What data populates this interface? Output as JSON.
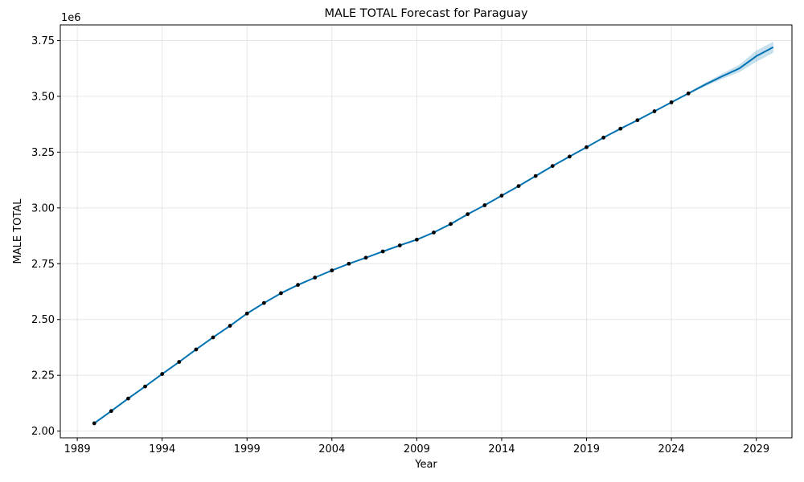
{
  "chart_data": {
    "type": "line",
    "title": "MALE TOTAL Forecast for Paraguay",
    "xlabel": "Year",
    "ylabel": "MALE TOTAL",
    "y_offset_label": "1e6",
    "y_scale_factor": 1000000,
    "xlim": [
      1988.0,
      2031.1
    ],
    "ylim": [
      1.97,
      3.82
    ],
    "x_ticks": [
      1989,
      1994,
      1999,
      2004,
      2009,
      2014,
      2019,
      2024,
      2029
    ],
    "y_ticks": [
      2.0,
      2.25,
      2.5,
      2.75,
      3.0,
      3.25,
      3.5,
      3.75
    ],
    "y_tick_labels": [
      "2.00",
      "2.25",
      "2.50",
      "2.75",
      "3.00",
      "3.25",
      "3.50",
      "3.75"
    ],
    "grid": true,
    "colors": {
      "forecast_line": "#0072b2",
      "interval_fill": "#0072b2",
      "observed_points": "#000000",
      "grid": "#e6e6e6"
    },
    "series": [
      {
        "kind": "observed",
        "x": [
          1990,
          1991,
          1992,
          1993,
          1994,
          1995,
          1996,
          1997,
          1998,
          1999,
          2000,
          2001,
          2002,
          2003,
          2004,
          2005,
          2006,
          2007,
          2008,
          2009,
          2010,
          2011,
          2012,
          2013,
          2014,
          2015,
          2016,
          2017,
          2018,
          2019,
          2020,
          2021,
          2022,
          2023,
          2024,
          2025
        ],
        "y": [
          2.035,
          2.09,
          2.146,
          2.2,
          2.256,
          2.31,
          2.366,
          2.42,
          2.472,
          2.527,
          2.574,
          2.618,
          2.655,
          2.688,
          2.72,
          2.75,
          2.777,
          2.805,
          2.832,
          2.858,
          2.89,
          2.928,
          2.972,
          3.012,
          3.055,
          3.098,
          3.143,
          3.188,
          3.23,
          3.272,
          3.315,
          3.355,
          3.393,
          3.433,
          3.473,
          3.513
        ]
      },
      {
        "kind": "forecast",
        "x": [
          1990,
          1991,
          1992,
          1993,
          1994,
          1995,
          1996,
          1997,
          1998,
          1999,
          2000,
          2001,
          2002,
          2003,
          2004,
          2005,
          2006,
          2007,
          2008,
          2009,
          2010,
          2011,
          2012,
          2013,
          2014,
          2015,
          2016,
          2017,
          2018,
          2019,
          2020,
          2021,
          2022,
          2023,
          2024,
          2025,
          2026,
          2027,
          2028,
          2029,
          2030
        ],
        "y": [
          2.035,
          2.09,
          2.146,
          2.2,
          2.256,
          2.31,
          2.366,
          2.42,
          2.472,
          2.527,
          2.574,
          2.618,
          2.655,
          2.688,
          2.72,
          2.75,
          2.777,
          2.805,
          2.832,
          2.858,
          2.89,
          2.928,
          2.972,
          3.012,
          3.055,
          3.098,
          3.143,
          3.188,
          3.23,
          3.272,
          3.315,
          3.355,
          3.393,
          3.433,
          3.473,
          3.513,
          3.553,
          3.59,
          3.625,
          3.68,
          3.72
        ],
        "lower": [
          2.035,
          2.09,
          2.146,
          2.2,
          2.256,
          2.31,
          2.366,
          2.42,
          2.472,
          2.527,
          2.574,
          2.618,
          2.655,
          2.688,
          2.72,
          2.75,
          2.777,
          2.805,
          2.832,
          2.858,
          2.89,
          2.928,
          2.972,
          3.012,
          3.055,
          3.098,
          3.143,
          3.188,
          3.23,
          3.272,
          3.315,
          3.355,
          3.393,
          3.433,
          3.471,
          3.509,
          3.545,
          3.578,
          3.608,
          3.655,
          3.695
        ],
        "upper": [
          2.035,
          2.09,
          2.146,
          2.2,
          2.256,
          2.31,
          2.366,
          2.42,
          2.472,
          2.527,
          2.574,
          2.618,
          2.655,
          2.688,
          2.72,
          2.75,
          2.777,
          2.805,
          2.832,
          2.858,
          2.89,
          2.928,
          2.972,
          3.012,
          3.055,
          3.098,
          3.143,
          3.188,
          3.23,
          3.272,
          3.315,
          3.355,
          3.393,
          3.433,
          3.475,
          3.517,
          3.561,
          3.602,
          3.642,
          3.705,
          3.745
        ]
      }
    ]
  }
}
